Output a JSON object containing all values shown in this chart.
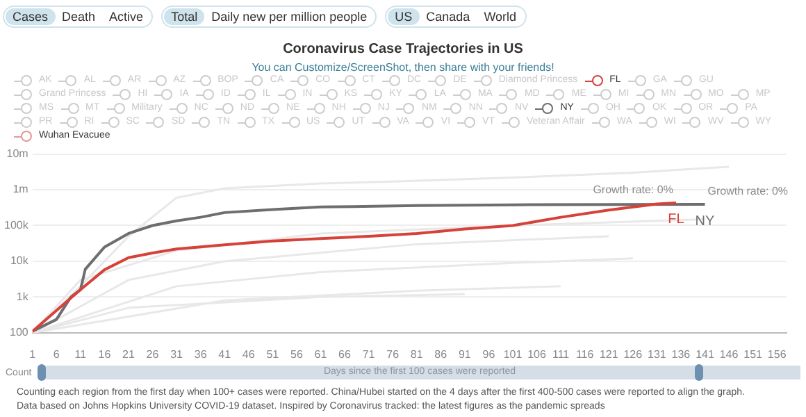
{
  "chart_data": {
    "type": "line",
    "title": "Coronavirus Case Trajectories in US",
    "subtitle": "You can Customize/ScreenShot, then share with your friends!",
    "xlabel": "Days since the first 100 cases were reported",
    "ylabel": "Count",
    "log": "y",
    "grid": "y",
    "legend": "top",
    "marker": "none",
    "line_style": "solid",
    "xlim": [
      1,
      158
    ],
    "xticks": [
      1,
      6,
      11,
      16,
      21,
      26,
      31,
      36,
      41,
      46,
      51,
      56,
      61,
      66,
      71,
      76,
      81,
      86,
      91,
      96,
      101,
      106,
      111,
      116,
      121,
      126,
      131,
      136,
      141,
      146,
      151,
      156
    ],
    "ylim": [
      100,
      10000000
    ],
    "yticks": [
      {
        "value": 100,
        "label": "100"
      },
      {
        "value": 1000,
        "label": "1k"
      },
      {
        "value": 10000,
        "label": "10k"
      },
      {
        "value": 100000,
        "label": "100k"
      },
      {
        "value": 1000000,
        "label": "1m"
      },
      {
        "value": 10000000,
        "label": "10m"
      }
    ],
    "annotations": [
      "Cases",
      "Death",
      "Active",
      "Total",
      "Daily new per million people",
      "US",
      "Canada",
      "World",
      {
        "text": "Growth rate: 0%",
        "x": 135,
        "y": 430000
      },
      {
        "text": "Growth rate: 0%",
        "x": 141,
        "y": 390000
      },
      "Counting each region from the first day when 100+ cases  were reported. China/Hubei started on the 4 days after the first 400-500 cases were reported to align the graph.",
      "Data based on Johns Hopkins University COVID-19 dataset. Inspired by Coronavirus tracked: the latest figures as the pandemic spreads"
    ],
    "series": [
      {
        "color": "#e8e8e8",
        "x": [
          1,
          11,
          21,
          31,
          41,
          61,
          76,
          101,
          126,
          146
        ],
        "values": [
          100,
          2000,
          50000,
          600000,
          1100000,
          1500000,
          1700000,
          2200000,
          3000000,
          4400000
        ]
      },
      {
        "color": "#e8e8e8",
        "x": [
          1,
          11,
          31,
          61,
          101,
          141
        ],
        "values": [
          100,
          3000,
          20000,
          60000,
          100000,
          150000
        ]
      },
      {
        "color": "#e8e8e8",
        "x": [
          1,
          21,
          41,
          81,
          121
        ],
        "values": [
          100,
          3000,
          10000,
          30000,
          50000
        ]
      },
      {
        "color": "#e8e8e8",
        "x": [
          1,
          31,
          61,
          101,
          126
        ],
        "values": [
          100,
          2000,
          5000,
          9000,
          12000
        ]
      },
      {
        "color": "#e8e8e8",
        "x": [
          1,
          41,
          81,
          111
        ],
        "values": [
          100,
          800,
          1500,
          2000
        ]
      },
      {
        "color": "#e8e8e8",
        "x": [
          1,
          21,
          61,
          91
        ],
        "values": [
          100,
          500,
          1000,
          1200
        ]
      },
      {
        "name": "AK",
        "color": "#cccccc"
      },
      {
        "name": "AL",
        "color": "#cccccc"
      },
      {
        "name": "AR",
        "color": "#cccccc"
      },
      {
        "name": "AZ",
        "color": "#cccccc"
      },
      {
        "name": "BOP",
        "color": "#cccccc"
      },
      {
        "name": "CA",
        "color": "#cccccc"
      },
      {
        "name": "CO",
        "color": "#cccccc"
      },
      {
        "name": "CT",
        "color": "#cccccc"
      },
      {
        "name": "DC",
        "color": "#cccccc"
      },
      {
        "name": "DE",
        "color": "#cccccc"
      },
      {
        "name": "Diamond Princess",
        "color": "#cccccc"
      },
      {
        "name": "FL",
        "color": "#d6423a",
        "x": [
          1,
          6,
          11,
          16,
          21,
          26,
          31,
          41,
          51,
          61,
          71,
          81,
          91,
          101,
          111,
          121,
          131,
          135
        ],
        "values": [
          110,
          420,
          1600,
          5800,
          12600,
          17000,
          22000,
          29000,
          37000,
          43000,
          50000,
          60000,
          80000,
          100000,
          170000,
          270000,
          400000,
          430000
        ]
      },
      {
        "name": "GA",
        "color": "#cccccc"
      },
      {
        "name": "GU",
        "color": "#cccccc"
      },
      {
        "name": "Grand Princess",
        "color": "#cccccc"
      },
      {
        "name": "HI",
        "color": "#cccccc"
      },
      {
        "name": "IA",
        "color": "#cccccc"
      },
      {
        "name": "ID",
        "color": "#cccccc"
      },
      {
        "name": "IL",
        "color": "#cccccc"
      },
      {
        "name": "IN",
        "color": "#cccccc"
      },
      {
        "name": "KS",
        "color": "#cccccc"
      },
      {
        "name": "KY",
        "color": "#cccccc"
      },
      {
        "name": "LA",
        "color": "#cccccc"
      },
      {
        "name": "MA",
        "color": "#cccccc"
      },
      {
        "name": "MD",
        "color": "#cccccc"
      },
      {
        "name": "ME",
        "color": "#cccccc"
      },
      {
        "name": "MI",
        "color": "#cccccc"
      },
      {
        "name": "MN",
        "color": "#cccccc"
      },
      {
        "name": "MO",
        "color": "#cccccc"
      },
      {
        "name": "MP",
        "color": "#cccccc"
      },
      {
        "name": "MS",
        "color": "#cccccc"
      },
      {
        "name": "MT",
        "color": "#cccccc"
      },
      {
        "name": "Military",
        "color": "#cccccc"
      },
      {
        "name": "NC",
        "color": "#cccccc"
      },
      {
        "name": "ND",
        "color": "#cccccc"
      },
      {
        "name": "NE",
        "color": "#cccccc"
      },
      {
        "name": "NH",
        "color": "#cccccc"
      },
      {
        "name": "NJ",
        "color": "#cccccc"
      },
      {
        "name": "NM",
        "color": "#cccccc"
      },
      {
        "name": "NN",
        "color": "#cccccc"
      },
      {
        "name": "NV",
        "color": "#cccccc"
      },
      {
        "name": "NY",
        "color": "#6e6e6e",
        "x": [
          1,
          6,
          9,
          11,
          12,
          16,
          21,
          26,
          31,
          36,
          41,
          51,
          61,
          81,
          101,
          141
        ],
        "values": [
          110,
          236,
          1000,
          1600,
          6000,
          25000,
          60000,
          100000,
          135000,
          170000,
          230000,
          280000,
          330000,
          360000,
          380000,
          390000
        ]
      },
      {
        "name": "OH",
        "color": "#cccccc"
      },
      {
        "name": "OK",
        "color": "#cccccc"
      },
      {
        "name": "OR",
        "color": "#cccccc"
      },
      {
        "name": "PA",
        "color": "#cccccc"
      },
      {
        "name": "PR",
        "color": "#cccccc"
      },
      {
        "name": "RI",
        "color": "#cccccc"
      },
      {
        "name": "SC",
        "color": "#cccccc"
      },
      {
        "name": "SD",
        "color": "#cccccc"
      },
      {
        "name": "TN",
        "color": "#cccccc"
      },
      {
        "name": "TX",
        "color": "#cccccc"
      },
      {
        "name": "US",
        "color": "#cccccc"
      },
      {
        "name": "UT",
        "color": "#cccccc"
      },
      {
        "name": "VA",
        "color": "#cccccc"
      },
      {
        "name": "VI",
        "color": "#cccccc"
      },
      {
        "name": "VT",
        "color": "#cccccc"
      },
      {
        "name": "Veteran Affair",
        "color": "#cccccc"
      },
      {
        "name": "WA",
        "color": "#cccccc"
      },
      {
        "name": "WI",
        "color": "#cccccc"
      },
      {
        "name": "WV",
        "color": "#cccccc"
      },
      {
        "name": "WY",
        "color": "#cccccc"
      },
      {
        "name": "Wuhan Evacuee",
        "color": "#e09a95"
      }
    ]
  }
}
